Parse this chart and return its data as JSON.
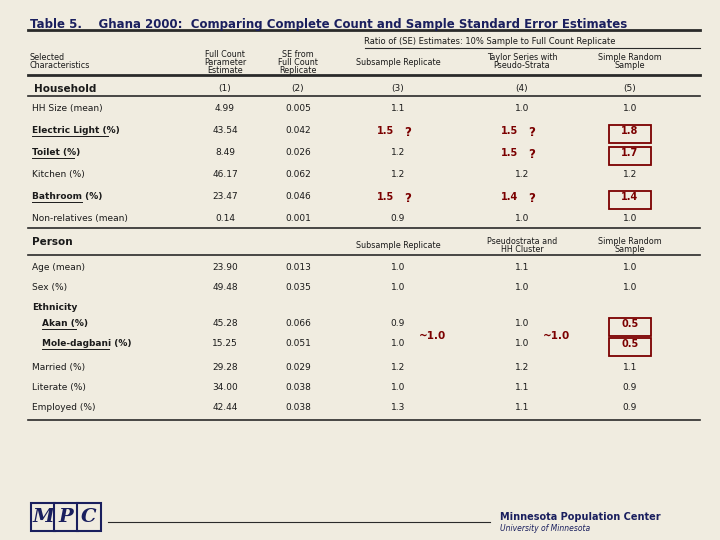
{
  "title": "Table 5.    Ghana 2000:  Comparing Complete Count and Sample Standard Error Estimates",
  "bg_color": "#f0ece0",
  "header_ratio": "Ratio of (SE) Estimates: 10% Sample to Full Count Replicate",
  "rows_household": [
    {
      "label": "HH Size (mean)",
      "bold": false,
      "underline": false,
      "col2": "4.99",
      "col3": "0.005",
      "col4": "1.1",
      "col5": "1.0",
      "col6": "1.0",
      "col4_flag": false,
      "col5_flag": false,
      "col6_box": false
    },
    {
      "label": "Electric Light (%)",
      "bold": true,
      "underline": true,
      "col2": "43.54",
      "col3": "0.042",
      "col4": "1.5",
      "col5": "1.5",
      "col6": "1.8",
      "col4_flag": true,
      "col5_flag": true,
      "col6_box": true
    },
    {
      "label": "Toilet (%)",
      "bold": true,
      "underline": true,
      "col2": "8.49",
      "col3": "0.026",
      "col4": "1.2",
      "col5": "1.5",
      "col6": "1.7",
      "col4_flag": false,
      "col5_flag": true,
      "col6_box": true
    },
    {
      "label": "Kitchen (%)",
      "bold": false,
      "underline": false,
      "col2": "46.17",
      "col3": "0.062",
      "col4": "1.2",
      "col5": "1.2",
      "col6": "1.2",
      "col4_flag": false,
      "col5_flag": false,
      "col6_box": false
    },
    {
      "label": "Bathroom (%)",
      "bold": true,
      "underline": true,
      "col2": "23.47",
      "col3": "0.046",
      "col4": "1.5",
      "col5": "1.4",
      "col6": "1.4",
      "col4_flag": true,
      "col5_flag": true,
      "col6_box": true
    },
    {
      "label": "Non-relatives (mean)",
      "bold": false,
      "underline": false,
      "col2": "0.14",
      "col3": "0.001",
      "col4": "0.9",
      "col5": "1.0",
      "col6": "1.0",
      "col4_flag": false,
      "col5_flag": false,
      "col6_box": false
    }
  ],
  "rows_person": [
    {
      "label": "Age (mean)",
      "bold": false,
      "underline": false,
      "col2": "23.90",
      "col3": "0.013",
      "col4": "1.0",
      "col5": "1.1",
      "col6": "1.0",
      "col6_box": false,
      "col4_tilde": false,
      "col5_tilde": false
    },
    {
      "label": "Sex (%)",
      "bold": false,
      "underline": false,
      "col2": "49.48",
      "col3": "0.035",
      "col4": "1.0",
      "col5": "1.0",
      "col6": "1.0",
      "col6_box": false,
      "col4_tilde": false,
      "col5_tilde": false
    },
    {
      "label": "Ethnicity",
      "bold": true,
      "underline": false,
      "col2": "",
      "col3": "",
      "col4": "",
      "col5": "",
      "col6": "",
      "col6_box": false,
      "col4_tilde": false,
      "col5_tilde": false
    },
    {
      "label": "Akan (%)",
      "bold": true,
      "underline": true,
      "indent": true,
      "col2": "45.28",
      "col3": "0.066",
      "col4": "0.9",
      "col5": "1.0",
      "col6": "0.5",
      "col6_box": true,
      "col4_tilde": false,
      "col5_tilde": false
    },
    {
      "label": "Mole-dagbani (%)",
      "bold": true,
      "underline": true,
      "indent": true,
      "col2": "15.25",
      "col3": "0.051",
      "col4": "1.0",
      "col5": "1.0",
      "col6": "0.5",
      "col6_box": true,
      "col4_tilde": true,
      "col5_tilde": true
    },
    {
      "label": "Married (%)",
      "bold": false,
      "underline": false,
      "col2": "29.28",
      "col3": "0.029",
      "col4": "1.2",
      "col5": "1.2",
      "col6": "1.1",
      "col6_box": false,
      "col4_tilde": false,
      "col5_tilde": false
    },
    {
      "label": "Literate (%)",
      "bold": false,
      "underline": false,
      "col2": "34.00",
      "col3": "0.038",
      "col4": "1.0",
      "col5": "1.1",
      "col6": "0.9",
      "col6_box": false,
      "col4_tilde": false,
      "col5_tilde": false
    },
    {
      "label": "Employed (%)",
      "bold": false,
      "underline": false,
      "col2": "42.44",
      "col3": "0.038",
      "col4": "1.3",
      "col5": "1.1",
      "col6": "0.9",
      "col6_box": false,
      "col4_tilde": false,
      "col5_tilde": false
    }
  ],
  "dark_red": "#7B0000",
  "navy": "#1a1f5e",
  "text_color": "#1a1a1a",
  "line_color": "#2a2a2a"
}
